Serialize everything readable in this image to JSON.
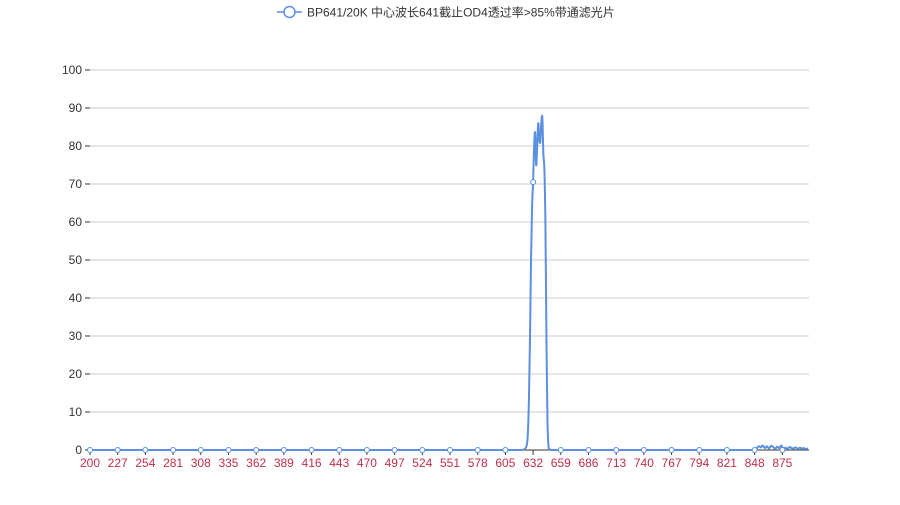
{
  "colors": {
    "series": "#5b8fe0",
    "x_tick_label": "#c0304a",
    "y_tick_label": "#333333",
    "grid": "#cccccc",
    "axis": "#333333"
  },
  "chart_data": {
    "type": "line",
    "legend": {
      "entries": [
        "BP641/20K 中心波长641截止OD4透过率>85%带通滤光片"
      ],
      "placement": "top-center"
    },
    "xlim": [
      200,
      901
    ],
    "ylim": [
      0,
      100
    ],
    "x_tick_labels": [
      "200",
      "227",
      "254",
      "281",
      "308",
      "335",
      "362",
      "389",
      "416",
      "443",
      "470",
      "497",
      "524",
      "551",
      "578",
      "605",
      "632",
      "659",
      "686",
      "713",
      "740",
      "767",
      "794",
      "821",
      "848",
      "875"
    ],
    "y_tick_labels": [
      "0",
      "10",
      "20",
      "30",
      "40",
      "50",
      "60",
      "70",
      "80",
      "90",
      "100"
    ],
    "grid": "horizontal",
    "series": [
      {
        "name": "BP641/20K 中心波长641截止OD4透过率>85%带通滤光片",
        "x": [
          200,
          227,
          254,
          281,
          308,
          335,
          362,
          389,
          416,
          443,
          470,
          497,
          524,
          551,
          578,
          605,
          620,
          624,
          626,
          627,
          628,
          629,
          630,
          631,
          632,
          633,
          634,
          635,
          636,
          637,
          638,
          639,
          640,
          641,
          642,
          643,
          644,
          645,
          646,
          647,
          648,
          649,
          650,
          651,
          652,
          653,
          654,
          659,
          686,
          713,
          740,
          767,
          794,
          821,
          848,
          850,
          852,
          854,
          856,
          858,
          860,
          862,
          864,
          866,
          868,
          870,
          872,
          874,
          876,
          878,
          880,
          882,
          884,
          886,
          888,
          890,
          892,
          894,
          896,
          898,
          900
        ],
        "y": [
          0,
          0,
          0,
          0,
          0,
          0,
          0,
          0,
          0,
          0,
          0,
          0,
          0,
          0,
          0,
          0,
          0,
          0.3,
          1.5,
          5,
          14,
          30,
          50,
          64,
          70.5,
          80,
          83.5,
          75,
          80,
          86,
          82,
          81,
          86,
          87.5,
          78,
          74,
          60,
          30,
          8,
          1,
          0.2,
          0,
          0,
          0,
          0,
          0,
          0,
          0,
          0,
          0,
          0,
          0,
          0,
          0,
          0,
          0.5,
          1,
          0.7,
          1.2,
          0.5,
          1,
          0.4,
          1.1,
          0.8,
          0.3,
          0.9,
          0.5,
          1.2,
          0.4,
          0.6,
          0.3,
          0.8,
          0.5,
          0.4,
          0.7,
          0.3,
          0.6,
          0.4,
          0.5,
          0.3,
          0.4
        ],
        "markers": [
          {
            "x": 200,
            "y": 0
          },
          {
            "x": 227,
            "y": 0
          },
          {
            "x": 254,
            "y": 0
          },
          {
            "x": 281,
            "y": 0
          },
          {
            "x": 308,
            "y": 0
          },
          {
            "x": 335,
            "y": 0
          },
          {
            "x": 362,
            "y": 0
          },
          {
            "x": 389,
            "y": 0
          },
          {
            "x": 416,
            "y": 0
          },
          {
            "x": 443,
            "y": 0
          },
          {
            "x": 470,
            "y": 0
          },
          {
            "x": 497,
            "y": 0
          },
          {
            "x": 524,
            "y": 0
          },
          {
            "x": 551,
            "y": 0
          },
          {
            "x": 578,
            "y": 0
          },
          {
            "x": 605,
            "y": 0
          },
          {
            "x": 632,
            "y": 70.5
          },
          {
            "x": 659,
            "y": 0
          },
          {
            "x": 686,
            "y": 0
          },
          {
            "x": 713,
            "y": 0
          },
          {
            "x": 740,
            "y": 0
          },
          {
            "x": 767,
            "y": 0
          },
          {
            "x": 794,
            "y": 0
          },
          {
            "x": 821,
            "y": 0
          },
          {
            "x": 848,
            "y": 0
          },
          {
            "x": 875,
            "y": 0
          }
        ]
      }
    ]
  }
}
